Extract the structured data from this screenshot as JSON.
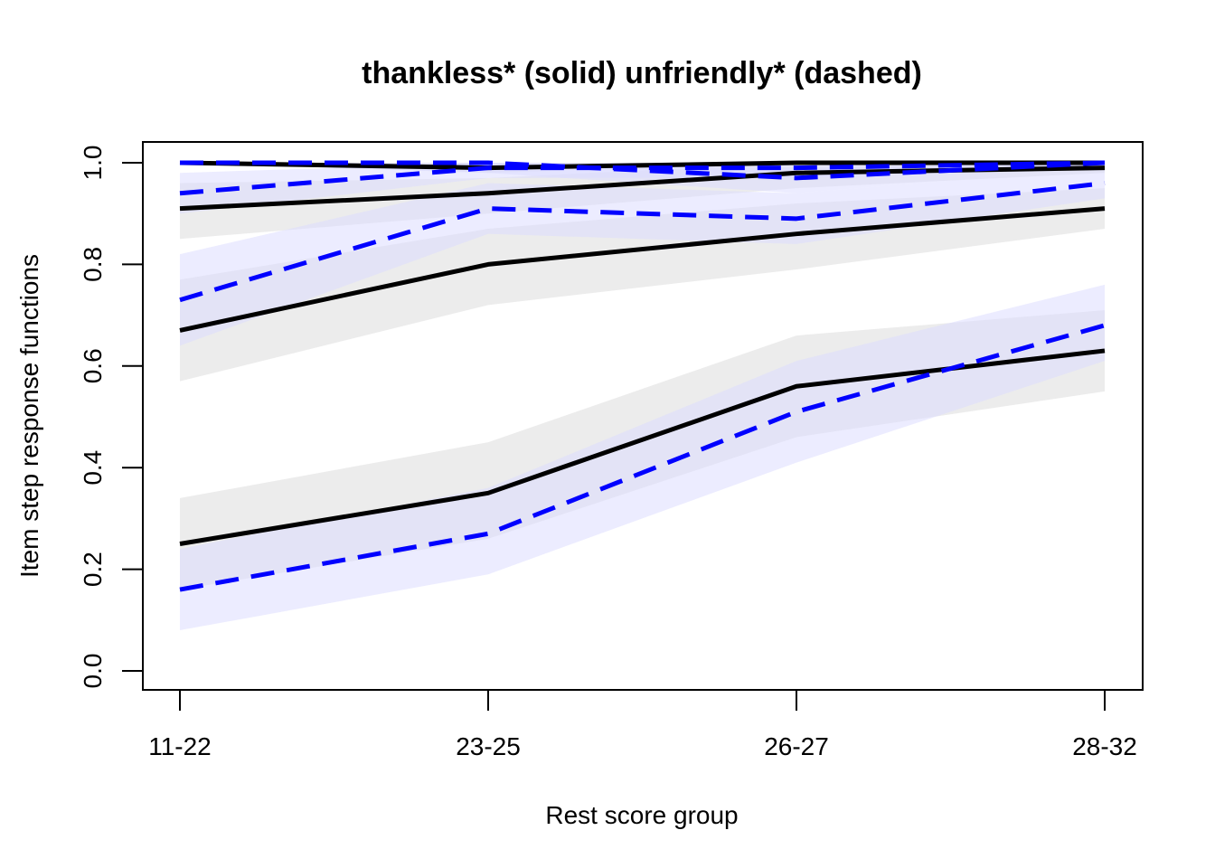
{
  "chart_data": {
    "type": "line",
    "title": "thankless* (solid) unfriendly* (dashed)",
    "xlabel": "Rest score group",
    "ylabel": "Item step response functions",
    "categories": [
      "11-22",
      "23-25",
      "26-27",
      "28-32"
    ],
    "ylim": [
      0.0,
      1.0
    ],
    "yticks": [
      "0.0",
      "0.2",
      "0.4",
      "0.6",
      "0.8",
      "1.0"
    ],
    "grid": false,
    "series": [
      {
        "item": "thankless",
        "style": "solid",
        "color": "#000000",
        "band_color": "#e6e6e6",
        "values": [
          1.0,
          0.99,
          1.0,
          1.0
        ],
        "lower": [
          1.0,
          0.98,
          1.0,
          1.0
        ],
        "upper": [
          1.0,
          1.0,
          1.0,
          1.0
        ]
      },
      {
        "item": "thankless",
        "style": "solid",
        "color": "#000000",
        "band_color": "#e6e6e6",
        "values": [
          0.91,
          0.94,
          0.98,
          0.99
        ],
        "lower": [
          0.85,
          0.9,
          0.95,
          0.98
        ],
        "upper": [
          0.96,
          0.97,
          1.0,
          1.0
        ]
      },
      {
        "item": "thankless",
        "style": "solid",
        "color": "#000000",
        "band_color": "#e6e6e6",
        "values": [
          0.67,
          0.8,
          0.86,
          0.91
        ],
        "lower": [
          0.57,
          0.72,
          0.79,
          0.87
        ],
        "upper": [
          0.77,
          0.87,
          0.92,
          0.95
        ]
      },
      {
        "item": "thankless",
        "style": "solid",
        "color": "#000000",
        "band_color": "#e6e6e6",
        "values": [
          0.25,
          0.35,
          0.56,
          0.63
        ],
        "lower": [
          0.16,
          0.26,
          0.46,
          0.55
        ],
        "upper": [
          0.34,
          0.45,
          0.66,
          0.71
        ]
      },
      {
        "item": "unfriendly",
        "style": "dashed",
        "color": "#0000ff",
        "band_color": "#dcdcff",
        "values": [
          1.0,
          1.0,
          0.97,
          1.0
        ],
        "lower": [
          1.0,
          0.98,
          0.94,
          0.99
        ],
        "upper": [
          1.0,
          1.0,
          0.99,
          1.0
        ]
      },
      {
        "item": "unfriendly",
        "style": "dashed",
        "color": "#0000ff",
        "band_color": "#dcdcff",
        "values": [
          0.94,
          0.99,
          0.99,
          1.0
        ],
        "lower": [
          0.9,
          0.97,
          0.97,
          0.99
        ],
        "upper": [
          0.98,
          1.0,
          1.0,
          1.0
        ]
      },
      {
        "item": "unfriendly",
        "style": "dashed",
        "color": "#0000ff",
        "band_color": "#dcdcff",
        "values": [
          0.73,
          0.91,
          0.89,
          0.96
        ],
        "lower": [
          0.64,
          0.86,
          0.84,
          0.93
        ],
        "upper": [
          0.82,
          0.96,
          0.94,
          0.99
        ]
      },
      {
        "item": "unfriendly",
        "style": "dashed",
        "color": "#0000ff",
        "band_color": "#dcdcff",
        "values": [
          0.16,
          0.27,
          0.51,
          0.68
        ],
        "lower": [
          0.08,
          0.19,
          0.41,
          0.61
        ],
        "upper": [
          0.24,
          0.36,
          0.61,
          0.76
        ]
      }
    ]
  }
}
